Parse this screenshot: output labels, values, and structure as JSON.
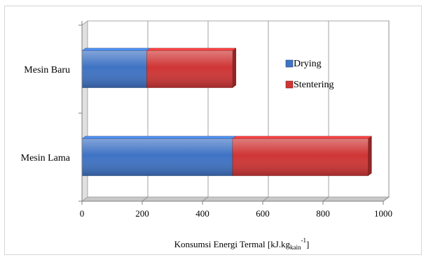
{
  "chart_data": {
    "type": "bar",
    "orientation": "horizontal",
    "stacked": true,
    "categories": [
      "Mesin Baru",
      "Mesin Lama"
    ],
    "series": [
      {
        "name": "Drying",
        "values": [
          215,
          500
        ],
        "color": "#3f73c4"
      },
      {
        "name": "Stentering",
        "values": [
          285,
          450
        ],
        "color": "#cf3535"
      }
    ],
    "xlabel": {
      "main": "Konsumsi Energi Termal [kJ.kg",
      "sub": "kain",
      "sup": "-1",
      "close": "]"
    },
    "xlim": [
      0,
      1000
    ],
    "xticks": [
      "0",
      "200",
      "400",
      "600",
      "800",
      "1000"
    ],
    "grid": true,
    "legend": "inside-right"
  }
}
